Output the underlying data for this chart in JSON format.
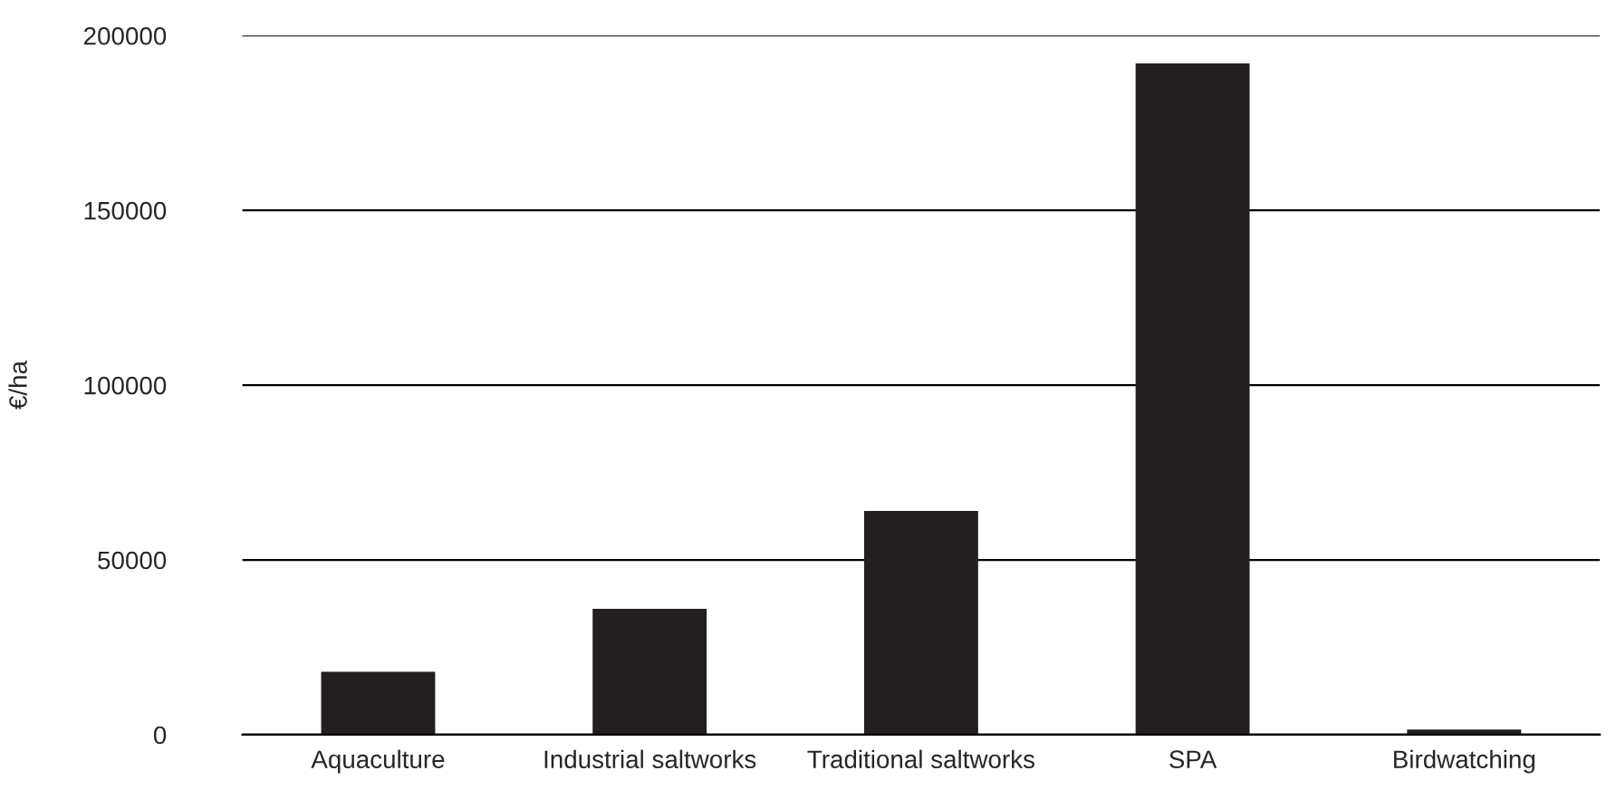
{
  "chart_data": {
    "type": "bar",
    "ylabel": "€/ha",
    "categories": [
      "Aquaculture",
      "Industrial saltworks",
      "Traditional saltworks",
      "SPA",
      "Birdwatching"
    ],
    "values": [
      18000,
      36000,
      64000,
      192000,
      1500
    ],
    "color": "#231f20",
    "ylim": [
      0,
      200000
    ],
    "yticks": [
      0,
      50000,
      100000,
      150000,
      200000
    ],
    "grid": "y"
  }
}
